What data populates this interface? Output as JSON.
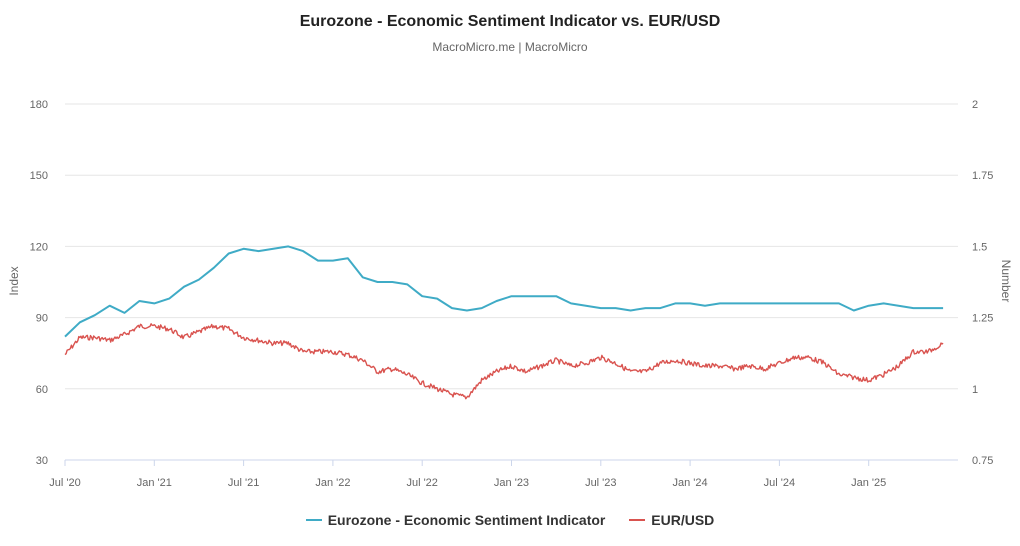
{
  "chart_data": {
    "type": "line",
    "title": "Eurozone - Economic Sentiment Indicator vs. EUR/USD",
    "subtitle": "MacroMicro.me | MacroMicro",
    "x_tick_labels": [
      "Jul '20",
      "Jan '21",
      "Jul '21",
      "Jan '22",
      "Jul '22",
      "Jan '23",
      "Jul '23",
      "Jan '24",
      "Jul '24",
      "Jan '25"
    ],
    "x_ticks": [
      "2020-07",
      "2021-01",
      "2021-07",
      "2022-01",
      "2022-07",
      "2023-01",
      "2023-07",
      "2024-01",
      "2024-07",
      "2025-01"
    ],
    "x_range": [
      "2020-07",
      "2025-07"
    ],
    "left_axis": {
      "label": "Index",
      "range": [
        30,
        180
      ],
      "ticks": [
        30,
        60,
        90,
        120,
        150,
        180
      ]
    },
    "right_axis": {
      "label": "Number",
      "range": [
        0.75,
        2
      ],
      "ticks": [
        "0.75",
        "1",
        "1.25",
        "1.5",
        "1.75",
        "2"
      ]
    },
    "grid": true,
    "legend_position": "bottom",
    "series": [
      {
        "name": "Eurozone - Economic Sentiment Indicator",
        "axis": "left",
        "color": "#3fabc6",
        "points": [
          [
            "2020-07",
            82
          ],
          [
            "2020-08",
            88
          ],
          [
            "2020-09",
            91
          ],
          [
            "2020-10",
            95
          ],
          [
            "2020-11",
            92
          ],
          [
            "2020-12",
            97
          ],
          [
            "2021-01",
            96
          ],
          [
            "2021-02",
            98
          ],
          [
            "2021-03",
            103
          ],
          [
            "2021-04",
            106
          ],
          [
            "2021-05",
            111
          ],
          [
            "2021-06",
            117
          ],
          [
            "2021-07",
            119
          ],
          [
            "2021-08",
            118
          ],
          [
            "2021-09",
            119
          ],
          [
            "2021-10",
            120
          ],
          [
            "2021-11",
            118
          ],
          [
            "2021-12",
            114
          ],
          [
            "2022-01",
            114
          ],
          [
            "2022-02",
            115
          ],
          [
            "2022-03",
            107
          ],
          [
            "2022-04",
            105
          ],
          [
            "2022-05",
            105
          ],
          [
            "2022-06",
            104
          ],
          [
            "2022-07",
            99
          ],
          [
            "2022-08",
            98
          ],
          [
            "2022-09",
            94
          ],
          [
            "2022-10",
            93
          ],
          [
            "2022-11",
            94
          ],
          [
            "2022-12",
            97
          ],
          [
            "2023-01",
            99
          ],
          [
            "2023-02",
            99
          ],
          [
            "2023-03",
            99
          ],
          [
            "2023-04",
            99
          ],
          [
            "2023-05",
            96
          ],
          [
            "2023-06",
            95
          ],
          [
            "2023-07",
            94
          ],
          [
            "2023-08",
            94
          ],
          [
            "2023-09",
            93
          ],
          [
            "2023-10",
            94
          ],
          [
            "2023-11",
            94
          ],
          [
            "2023-12",
            96
          ],
          [
            "2024-01",
            96
          ],
          [
            "2024-02",
            95
          ],
          [
            "2024-03",
            96
          ],
          [
            "2024-04",
            96
          ],
          [
            "2024-05",
            96
          ],
          [
            "2024-06",
            96
          ],
          [
            "2024-07",
            96
          ],
          [
            "2024-08",
            96
          ],
          [
            "2024-09",
            96
          ],
          [
            "2024-10",
            96
          ],
          [
            "2024-11",
            96
          ],
          [
            "2024-12",
            93
          ],
          [
            "2025-01",
            95
          ],
          [
            "2025-02",
            96
          ],
          [
            "2025-03",
            95
          ],
          [
            "2025-04",
            94
          ],
          [
            "2025-05",
            94
          ],
          [
            "2025-06",
            94
          ]
        ]
      },
      {
        "name": "EUR/USD",
        "axis": "right",
        "color": "#d9534f",
        "points": [
          [
            "2020-07",
            1.12
          ],
          [
            "2020-08",
            1.18
          ],
          [
            "2020-09",
            1.18
          ],
          [
            "2020-10",
            1.17
          ],
          [
            "2020-11",
            1.19
          ],
          [
            "2020-12",
            1.22
          ],
          [
            "2021-01",
            1.22
          ],
          [
            "2021-02",
            1.21
          ],
          [
            "2021-03",
            1.18
          ],
          [
            "2021-04",
            1.2
          ],
          [
            "2021-05",
            1.22
          ],
          [
            "2021-06",
            1.21
          ],
          [
            "2021-07",
            1.18
          ],
          [
            "2021-08",
            1.17
          ],
          [
            "2021-09",
            1.16
          ],
          [
            "2021-10",
            1.16
          ],
          [
            "2021-11",
            1.13
          ],
          [
            "2021-12",
            1.13
          ],
          [
            "2022-01",
            1.13
          ],
          [
            "2022-02",
            1.12
          ],
          [
            "2022-03",
            1.1
          ],
          [
            "2022-04",
            1.06
          ],
          [
            "2022-05",
            1.07
          ],
          [
            "2022-06",
            1.05
          ],
          [
            "2022-07",
            1.02
          ],
          [
            "2022-08",
            1.0
          ],
          [
            "2022-09",
            0.98
          ],
          [
            "2022-10",
            0.97
          ],
          [
            "2022-11",
            1.03
          ],
          [
            "2022-12",
            1.06
          ],
          [
            "2023-01",
            1.08
          ],
          [
            "2023-02",
            1.06
          ],
          [
            "2023-03",
            1.08
          ],
          [
            "2023-04",
            1.1
          ],
          [
            "2023-05",
            1.08
          ],
          [
            "2023-06",
            1.09
          ],
          [
            "2023-07",
            1.11
          ],
          [
            "2023-08",
            1.09
          ],
          [
            "2023-09",
            1.06
          ],
          [
            "2023-10",
            1.06
          ],
          [
            "2023-11",
            1.09
          ],
          [
            "2023-12",
            1.1
          ],
          [
            "2024-01",
            1.09
          ],
          [
            "2024-02",
            1.08
          ],
          [
            "2024-03",
            1.08
          ],
          [
            "2024-04",
            1.07
          ],
          [
            "2024-05",
            1.08
          ],
          [
            "2024-06",
            1.07
          ],
          [
            "2024-07",
            1.09
          ],
          [
            "2024-08",
            1.11
          ],
          [
            "2024-09",
            1.11
          ],
          [
            "2024-10",
            1.09
          ],
          [
            "2024-11",
            1.05
          ],
          [
            "2024-12",
            1.04
          ],
          [
            "2025-01",
            1.03
          ],
          [
            "2025-02",
            1.05
          ],
          [
            "2025-03",
            1.08
          ],
          [
            "2025-04",
            1.13
          ],
          [
            "2025-05",
            1.13
          ],
          [
            "2025-06",
            1.16
          ]
        ]
      }
    ]
  }
}
